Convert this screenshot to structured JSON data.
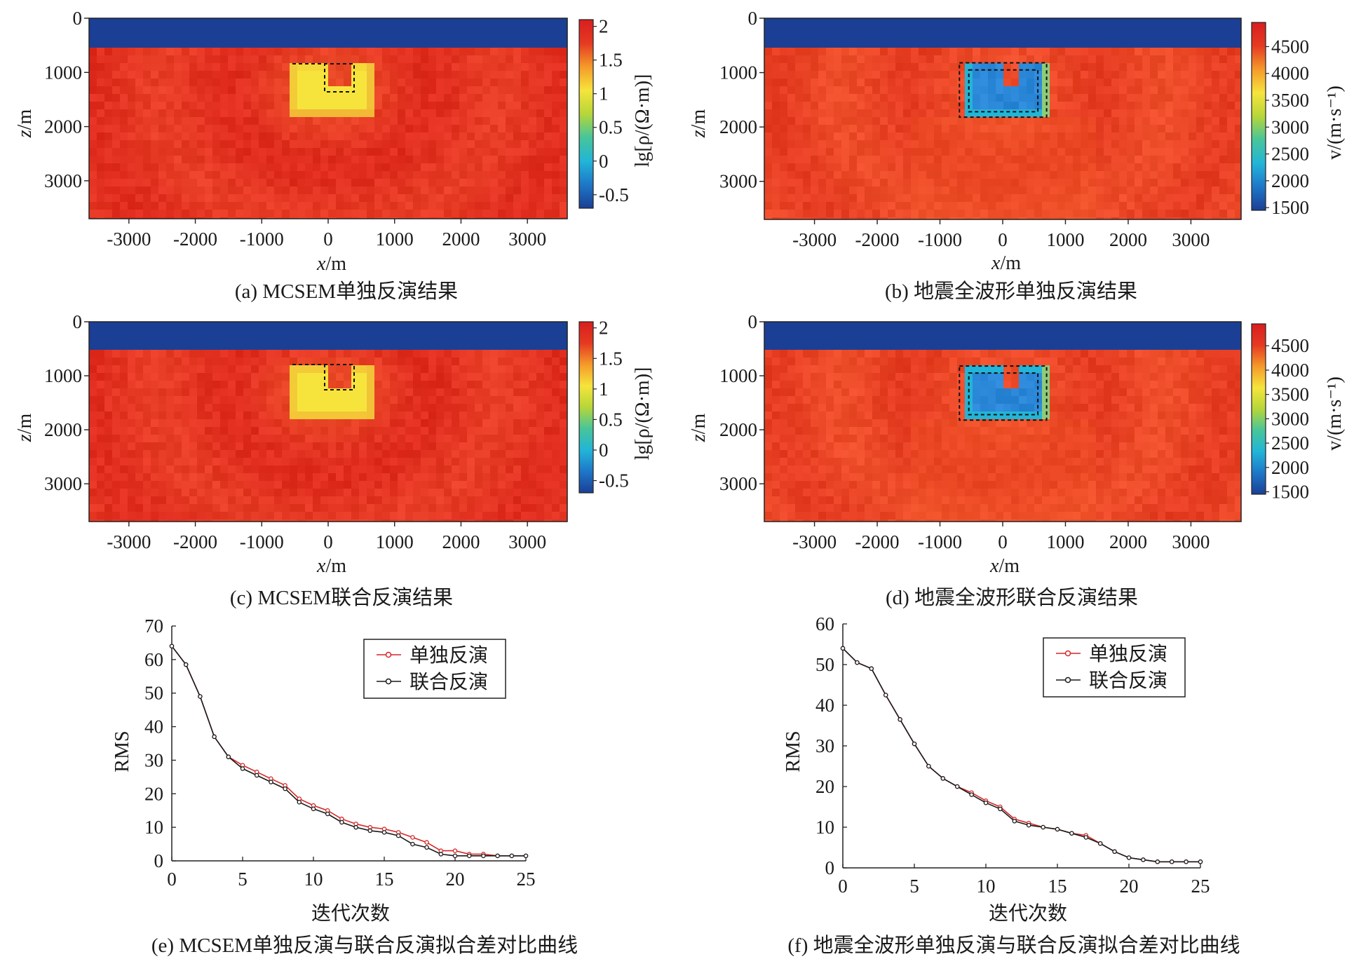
{
  "panels": [
    {
      "id": "a",
      "kind": "resistivity",
      "caption": "(a) MCSEM单独反演结果",
      "xlabel_var": "x",
      "xlabel_unit": "/m",
      "ylabel_var": "z",
      "ylabel_unit": "/m",
      "xticks": [
        -3000,
        -2000,
        -1000,
        0,
        1000,
        2000,
        3000
      ],
      "zticks": [
        0,
        1000,
        2000,
        3000
      ],
      "xlim": [
        -3600,
        3600
      ],
      "zlim": [
        0,
        3700
      ],
      "colorbar_label": "lg[ρ/(Ω·m)]",
      "colorbar_ticks": [
        "2",
        "1.5",
        "1",
        "0.5",
        "0",
        "-0.5"
      ],
      "colorbar_range": [
        -0.7,
        2.1
      ]
    },
    {
      "id": "b",
      "kind": "velocity",
      "caption": "(b) 地震全波形单独反演结果",
      "xlabel_var": "x",
      "xlabel_unit": "/m",
      "ylabel_var": "z",
      "ylabel_unit": "/m",
      "xticks": [
        -3000,
        -2000,
        -1000,
        0,
        1000,
        2000,
        3000
      ],
      "zticks": [
        0,
        1000,
        2000,
        3000
      ],
      "xlim": [
        -3800,
        3800
      ],
      "zlim": [
        0,
        3700
      ],
      "colorbar_label": "v/(m·s⁻¹)",
      "colorbar_ticks": [
        "4500",
        "4000",
        "3500",
        "3000",
        "2500",
        "2000",
        "1500"
      ],
      "colorbar_range": [
        1450,
        4950
      ]
    },
    {
      "id": "c",
      "kind": "resistivity",
      "caption": "(c) MCSEM联合反演结果",
      "xlabel_var": "x",
      "xlabel_unit": "/m",
      "ylabel_var": "z",
      "ylabel_unit": "/m",
      "xticks": [
        -3000,
        -2000,
        -1000,
        0,
        1000,
        2000,
        3000
      ],
      "zticks": [
        0,
        1000,
        2000,
        3000
      ],
      "xlim": [
        -3600,
        3600
      ],
      "zlim": [
        0,
        3700
      ],
      "colorbar_label": "lg[ρ/(Ω·m)]",
      "colorbar_ticks": [
        "2",
        "1.5",
        "1",
        "0.5",
        "0",
        "-0.5"
      ],
      "colorbar_range": [
        -0.7,
        2.1
      ]
    },
    {
      "id": "d",
      "kind": "velocity",
      "caption": "(d) 地震全波形联合反演结果",
      "xlabel_var": "x",
      "xlabel_unit": "/m",
      "ylabel_var": "z",
      "ylabel_unit": "/m",
      "xticks": [
        -3000,
        -2000,
        -1000,
        0,
        1000,
        2000,
        3000
      ],
      "zticks": [
        0,
        1000,
        2000,
        3000
      ],
      "xlim": [
        -3800,
        3800
      ],
      "zlim": [
        0,
        3700
      ],
      "colorbar_label": "v/(m·s⁻¹)",
      "colorbar_ticks": [
        "4500",
        "4000",
        "3500",
        "3000",
        "2500",
        "2000",
        "1500"
      ],
      "colorbar_range": [
        1450,
        4950
      ]
    }
  ],
  "colors": {
    "water": "#1b3f95",
    "resistivity_background": "#e43522",
    "resistivity_anomaly": "#f6e43c",
    "velocity_background": "#ea4526",
    "velocity_anomaly": "#2a86d6",
    "separate_inversion": "#d62728",
    "joint_inversion": "#1a1a1a",
    "colorbar": [
      "#1b3f95",
      "#1e77c8",
      "#22b5d8",
      "#47c59a",
      "#b6d639",
      "#f6e43c",
      "#f59a2a",
      "#e53a22",
      "#d81e1e"
    ]
  },
  "chart_data": [
    {
      "id": "e",
      "type": "line",
      "caption": "(e) MCSEM单独反演与联合反演拟合差对比曲线",
      "xlabel": "迭代次数",
      "ylabel": "RMS",
      "xlim": [
        0,
        25
      ],
      "ylim": [
        0,
        70
      ],
      "xticks": [
        0,
        5,
        10,
        15,
        20,
        25
      ],
      "yticks": [
        0,
        10,
        20,
        30,
        40,
        50,
        60,
        70
      ],
      "legend_position": "top-right",
      "x": [
        0,
        1,
        2,
        3,
        4,
        5,
        6,
        7,
        8,
        9,
        10,
        11,
        12,
        13,
        14,
        15,
        16,
        17,
        18,
        19,
        20,
        21,
        22,
        23,
        24,
        25
      ],
      "series": [
        {
          "name": "单独反演",
          "values": [
            64,
            58.5,
            49,
            37,
            31,
            28.5,
            26.5,
            24.5,
            22.5,
            18.5,
            16.5,
            15,
            12.5,
            11,
            10,
            9.5,
            8.5,
            7,
            5.5,
            3,
            3,
            2,
            2,
            1.5,
            1.5,
            1.5
          ]
        },
        {
          "name": "联合反演",
          "values": [
            64,
            58.5,
            49,
            37,
            31,
            27.5,
            25.5,
            23.5,
            21.5,
            17.5,
            15.5,
            14,
            11.5,
            10,
            9,
            8.5,
            7.5,
            5,
            4,
            2,
            1.5,
            1.5,
            1.5,
            1.5,
            1.5,
            1.5
          ]
        }
      ]
    },
    {
      "id": "f",
      "type": "line",
      "caption": "(f) 地震全波形单独反演与联合反演拟合差对比曲线",
      "xlabel": "迭代次数",
      "ylabel": "RMS",
      "xlim": [
        0,
        25
      ],
      "ylim": [
        0,
        60
      ],
      "xticks": [
        0,
        5,
        10,
        15,
        20,
        25
      ],
      "yticks": [
        0,
        10,
        20,
        30,
        40,
        50,
        60
      ],
      "legend_position": "top-right",
      "x": [
        0,
        1,
        2,
        3,
        4,
        5,
        6,
        7,
        8,
        9,
        10,
        11,
        12,
        13,
        14,
        15,
        16,
        17,
        18,
        19,
        20,
        21,
        22,
        23,
        24,
        25
      ],
      "series": [
        {
          "name": "单独反演",
          "values": [
            54,
            50.5,
            49,
            42.5,
            36.5,
            30.5,
            25,
            22,
            20,
            18.5,
            16.5,
            15,
            12,
            11,
            10,
            9.5,
            8.5,
            8,
            6,
            4,
            2.5,
            2,
            1.5,
            1.5,
            1.5,
            1.5
          ]
        },
        {
          "name": "联合反演",
          "values": [
            54,
            50.5,
            49,
            42.5,
            36.5,
            30.5,
            25,
            22,
            20,
            18,
            16,
            14.5,
            11.5,
            10.5,
            10,
            9.5,
            8.5,
            7.5,
            6,
            4,
            2.5,
            2,
            1.5,
            1.5,
            1.5,
            1.5
          ]
        }
      ]
    }
  ]
}
